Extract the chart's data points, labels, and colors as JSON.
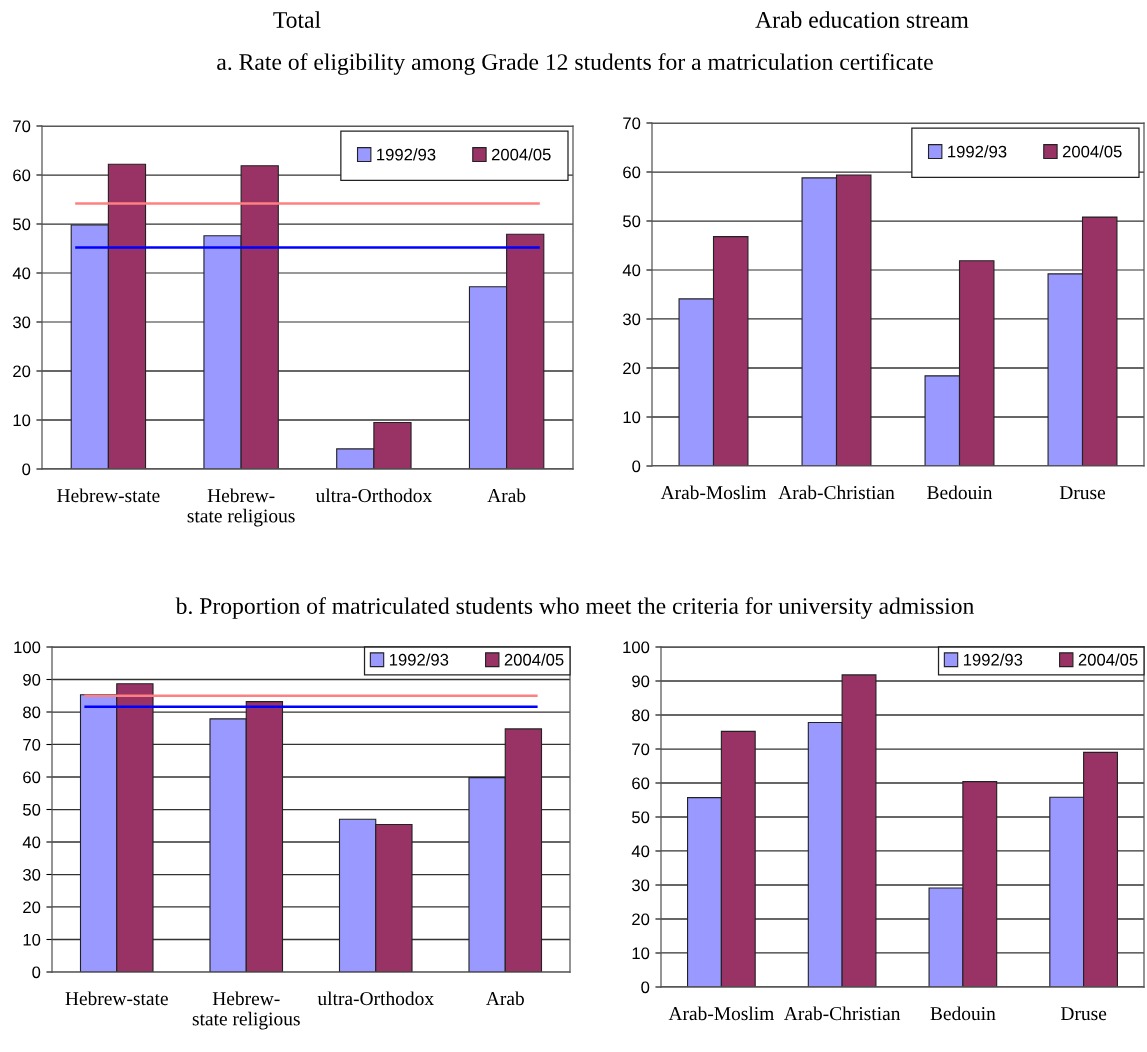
{
  "chart_data": [
    {
      "type": "bar",
      "title": "Total",
      "subtitle": "a. Rate of eligibility among Grade 12 students for a matriculation certificate",
      "categories": [
        "Hebrew-state",
        "Hebrew-\nstate religious",
        "ultra-Orthodox",
        "Arab"
      ],
      "series": [
        {
          "name": "1992/93",
          "color": "#9999ff",
          "values": [
            49.8,
            47.6,
            4.1,
            37.2
          ]
        },
        {
          "name": "2004/05",
          "color": "#993366",
          "values": [
            62.2,
            61.9,
            9.5,
            47.9
          ]
        }
      ],
      "ylim": [
        0,
        70
      ],
      "yticks": [
        0,
        10,
        20,
        30,
        40,
        50,
        60,
        70
      ],
      "grid": "y",
      "legend": "top right",
      "ref_lines": [
        {
          "axis": "y",
          "value": 54.2,
          "color": "#ff8080"
        },
        {
          "axis": "y",
          "value": 45.2,
          "color": "#0000ff"
        }
      ]
    },
    {
      "type": "bar",
      "title": "Arab education stream",
      "categories": [
        "Arab-Moslim",
        "Arab-Christian",
        "Bedouin",
        "Druse"
      ],
      "series": [
        {
          "name": "1992/93",
          "color": "#9999ff",
          "values": [
            34.1,
            58.8,
            18.4,
            39.2
          ]
        },
        {
          "name": "2004/05",
          "color": "#993366",
          "values": [
            46.8,
            59.4,
            41.9,
            50.8
          ]
        }
      ],
      "ylim": [
        0,
        70
      ],
      "yticks": [
        0,
        10,
        20,
        30,
        40,
        50,
        60,
        70
      ],
      "grid": "y",
      "legend": "top right"
    },
    {
      "type": "bar",
      "title": "b. Proportion of matriculated students who meet the criteria for university admission",
      "categories": [
        "Hebrew-state",
        "Hebrew-\nstate religious",
        "ultra-Orthodox",
        "Arab"
      ],
      "series": [
        {
          "name": "1992/93",
          "color": "#9999ff",
          "values": [
            85.3,
            77.9,
            47.0,
            59.8
          ]
        },
        {
          "name": "2004/05",
          "color": "#993366",
          "values": [
            88.7,
            83.2,
            45.4,
            74.8
          ]
        }
      ],
      "ylim": [
        0,
        100
      ],
      "yticks": [
        0,
        10,
        20,
        30,
        40,
        50,
        60,
        70,
        80,
        90,
        100
      ],
      "grid": "y",
      "legend": "top right",
      "ref_lines": [
        {
          "axis": "y",
          "value": 85.0,
          "color": "#ff8080"
        },
        {
          "axis": "y",
          "value": 81.6,
          "color": "#0000ff"
        }
      ]
    },
    {
      "type": "bar",
      "categories": [
        "Arab-Moslim",
        "Arab-Christian",
        "Bedouin",
        "Druse"
      ],
      "series": [
        {
          "name": "1992/93",
          "color": "#9999ff",
          "values": [
            55.7,
            77.8,
            29.1,
            55.8
          ]
        },
        {
          "name": "2004/05",
          "color": "#993366",
          "values": [
            75.2,
            91.8,
            60.4,
            69.0
          ]
        }
      ],
      "ylim": [
        0,
        100
      ],
      "yticks": [
        0,
        10,
        20,
        30,
        40,
        50,
        60,
        70,
        80,
        90,
        100
      ],
      "grid": "y",
      "legend": "top right"
    }
  ]
}
